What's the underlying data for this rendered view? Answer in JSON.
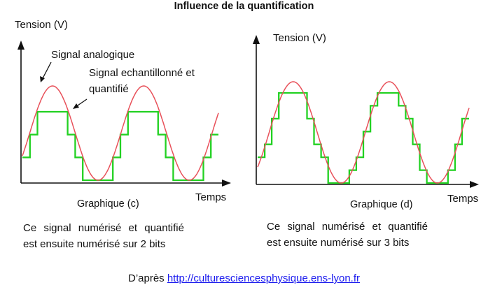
{
  "title": "Influence de la quantification",
  "colors": {
    "analog": "#e8515a",
    "quantized": "#22d122",
    "axis": "#111111",
    "link": "#1a1aee"
  },
  "graph_c": {
    "ylabel": "Tension (V)",
    "xlabel": "Temps",
    "caption": "Graphique (c)",
    "annotation_analog": "Signal analogique",
    "annotation_quant_line1": "Signal echantillonné et",
    "annotation_quant_line2": "quantifié",
    "description_line1": "Ce signal numérisé et quantifié",
    "description_line2": "est ensuite numérisé sur 2 bits",
    "bits": 2
  },
  "graph_d": {
    "ylabel": "Tension (V)",
    "xlabel": "Temps",
    "caption": "Graphique (d)",
    "description_line1": "Ce signal numérisé et quantifié",
    "description_line2": "est ensuite numérisé sur 3 bits",
    "bits": 3
  },
  "footer": {
    "prefix": "D’après ",
    "link_text": "http://culturesciencesphysique.ens-lyon.fr"
  }
}
